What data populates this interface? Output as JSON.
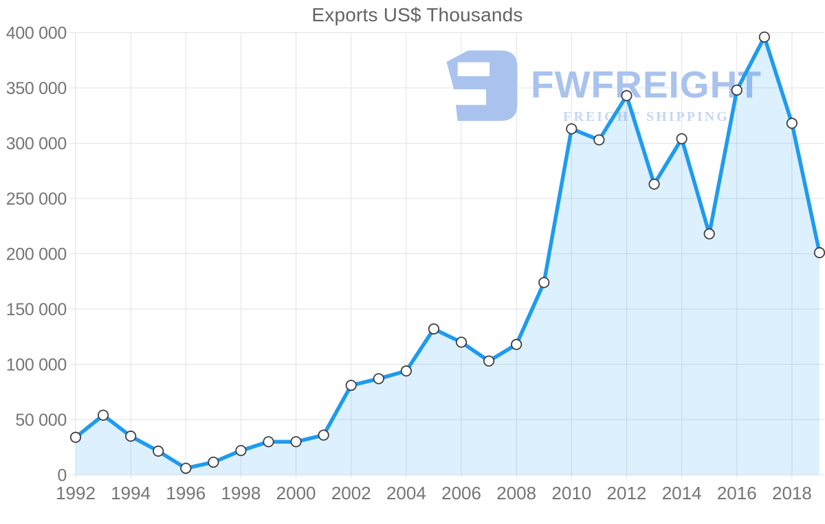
{
  "page_title": "Exports US$ Thousands",
  "watermark": {
    "icon": "fwfreight-logo-icon",
    "brand": "FWFREIGHT",
    "tagline": "FREIGHT SHIPPING",
    "brand_color": "#a9c3ee",
    "tagline_color": "#c7d6f2"
  },
  "chart_data": {
    "type": "area",
    "title": "Exports US$ Thousands",
    "series_name": "Exports",
    "x": [
      1992,
      1993,
      1994,
      1995,
      1996,
      1997,
      1998,
      1999,
      2000,
      2001,
      2002,
      2003,
      2004,
      2005,
      2006,
      2007,
      2008,
      2009,
      2010,
      2011,
      2012,
      2013,
      2014,
      2015,
      2016,
      2017,
      2018,
      2019
    ],
    "values": [
      34000,
      54000,
      35000,
      21500,
      6000,
      11500,
      22000,
      30000,
      30000,
      36000,
      81000,
      87000,
      94000,
      132000,
      120000,
      103000,
      118000,
      174000,
      313000,
      303000,
      343000,
      263000,
      304000,
      218000,
      348000,
      396000,
      318000,
      201000
    ],
    "xlabel": "",
    "ylabel": "",
    "ylim": [
      0,
      400000
    ],
    "xlim": [
      1992,
      2019
    ],
    "grid": true,
    "legend": "none",
    "y_ticks": {
      "values": [
        0,
        50000,
        100000,
        150000,
        200000,
        250000,
        300000,
        350000,
        400000
      ],
      "labels": [
        "0",
        "50 000",
        "100 000",
        "150 000",
        "200 000",
        "250 000",
        "300 000",
        "350 000",
        "400 000"
      ]
    },
    "x_ticks": {
      "values": [
        1992,
        1994,
        1996,
        1998,
        2000,
        2002,
        2004,
        2006,
        2008,
        2010,
        2012,
        2014,
        2016,
        2018
      ],
      "labels": [
        "1992",
        "1994",
        "1996",
        "1998",
        "2000",
        "2002",
        "2004",
        "2006",
        "2008",
        "2010",
        "2012",
        "2014",
        "2016",
        "2018"
      ]
    },
    "colors": {
      "line": "#1e9bf0",
      "fill": "rgba(30,155,240,0.15)",
      "marker_fill": "#ffffff",
      "marker_stroke": "#3f3f3f",
      "grid": "#e2e2e2",
      "tick_label": "#757575",
      "title": "#636363"
    }
  }
}
